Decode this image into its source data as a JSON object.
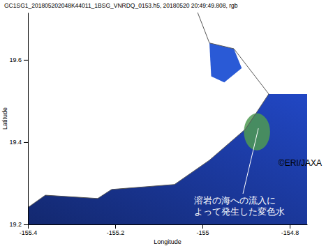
{
  "chart_data": {
    "type": "map",
    "title": "GC1SG1_201805202048K44011_1BSG_VNRDQ_0153.h5, 20180520 20:49:49.808, rgb",
    "x_label": "Longitude",
    "y_label": "Latitude",
    "xlim": [
      -155.4,
      -154.76
    ],
    "ylim": [
      19.2,
      19.715
    ],
    "xticks": [
      -155.4,
      -155.2,
      -155,
      -154.8
    ],
    "yticks": [
      19.2,
      19.4,
      19.6
    ],
    "coastline": {
      "lon": [
        -155.011,
        -154.984,
        -154.928,
        -154.848,
        -154.901,
        -154.984,
        -155.064,
        -155.208,
        -155.24,
        -155.36,
        -155.4
      ],
      "lat": [
        19.715,
        19.641,
        19.627,
        19.517,
        19.432,
        19.356,
        19.297,
        19.285,
        19.263,
        19.271,
        19.241
      ]
    },
    "ocean": {
      "color": "#2147c4",
      "lon": [
        -154.76,
        -154.848,
        -154.901,
        -154.984,
        -155.064,
        -155.208,
        -155.24,
        -155.36,
        -155.4,
        -155.4,
        -154.76
      ],
      "lat": [
        19.517,
        19.517,
        19.432,
        19.356,
        19.297,
        19.285,
        19.263,
        19.271,
        19.241,
        19.2,
        19.2
      ]
    },
    "ocean_north": {
      "color": "#2a5ad6",
      "lon": [
        -154.984,
        -154.928,
        -154.91,
        -154.95,
        -154.98
      ],
      "lat": [
        19.641,
        19.627,
        19.58,
        19.545,
        19.56
      ]
    },
    "discolored_water": {
      "lon": -154.875,
      "lat": 19.425,
      "rx": 0.03,
      "ry": 0.045,
      "color": "#4f9a52"
    },
    "annotation": [
      "溶岩の海への流入に",
      "よって発生した変色水"
    ],
    "credit": "©ERI/JAXA"
  }
}
